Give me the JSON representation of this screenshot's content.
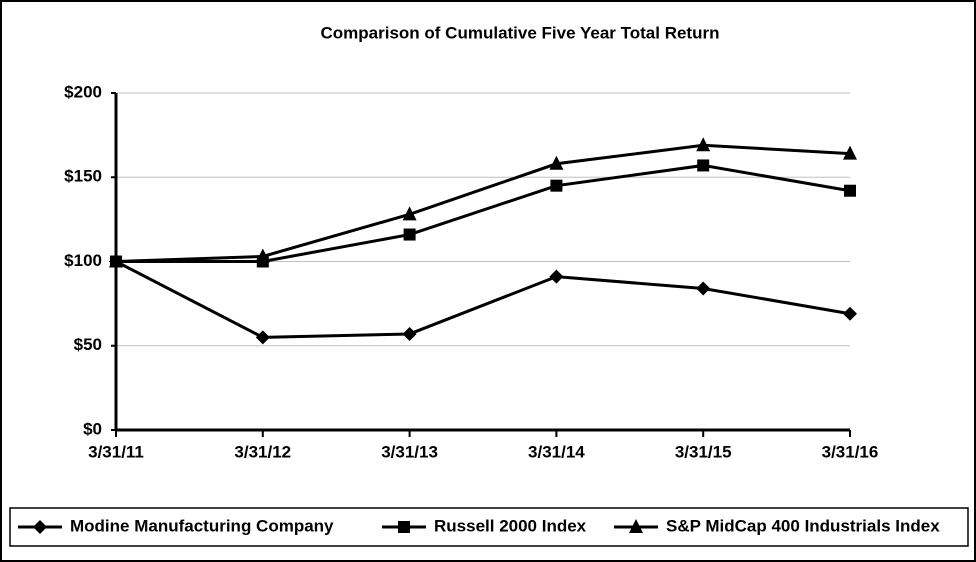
{
  "chart_data": {
    "type": "line",
    "title": "Comparison of Cumulative Five Year Total Return",
    "categories": [
      "3/31/11",
      "3/31/12",
      "3/31/13",
      "3/31/14",
      "3/31/15",
      "3/31/16"
    ],
    "series": [
      {
        "name": "Modine Manufacturing Company",
        "color": "#000000",
        "marker": "diamond",
        "values": [
          100,
          55,
          57,
          91,
          84,
          69
        ]
      },
      {
        "name": "Russell 2000 Index",
        "color": "#000000",
        "marker": "square",
        "values": [
          100,
          100,
          116,
          145,
          157,
          142
        ]
      },
      {
        "name": "S&P MidCap 400 Industrials Index",
        "color": "#000000",
        "marker": "triangle",
        "values": [
          100,
          103,
          128,
          158,
          169,
          164
        ]
      }
    ],
    "ylim": [
      0,
      200
    ],
    "yticks": [
      {
        "value": 0,
        "label": "$0"
      },
      {
        "value": 50,
        "label": "$50"
      },
      {
        "value": 100,
        "label": "$100"
      },
      {
        "value": 150,
        "label": "$150"
      },
      {
        "value": 200,
        "label": "$200"
      }
    ],
    "grid": true,
    "legend": "bottom"
  }
}
